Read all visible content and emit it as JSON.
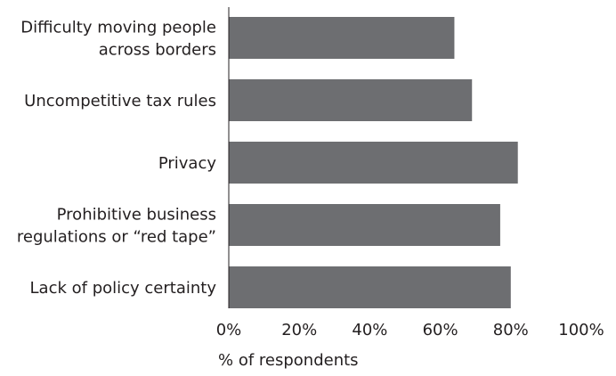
{
  "chart_data": {
    "type": "bar",
    "orientation": "horizontal",
    "categories": [
      [
        "Difficulty moving people",
        "across borders"
      ],
      [
        "Uncompetitive tax rules"
      ],
      [
        "Privacy"
      ],
      [
        "Prohibitive business",
        "regulations or “red tape”"
      ],
      [
        "Lack of policy certainty"
      ]
    ],
    "values": [
      64,
      69,
      82,
      77,
      80
    ],
    "xlabel": "% of respondents",
    "xlim": [
      0,
      100
    ],
    "x_ticks": [
      0,
      20,
      40,
      60,
      80,
      100
    ],
    "x_tick_labels": [
      "0%",
      "20%",
      "40%",
      "60%",
      "80%",
      "100%"
    ],
    "grid": false,
    "bar_color": "#6d6e71",
    "text_color": "#231f20"
  }
}
